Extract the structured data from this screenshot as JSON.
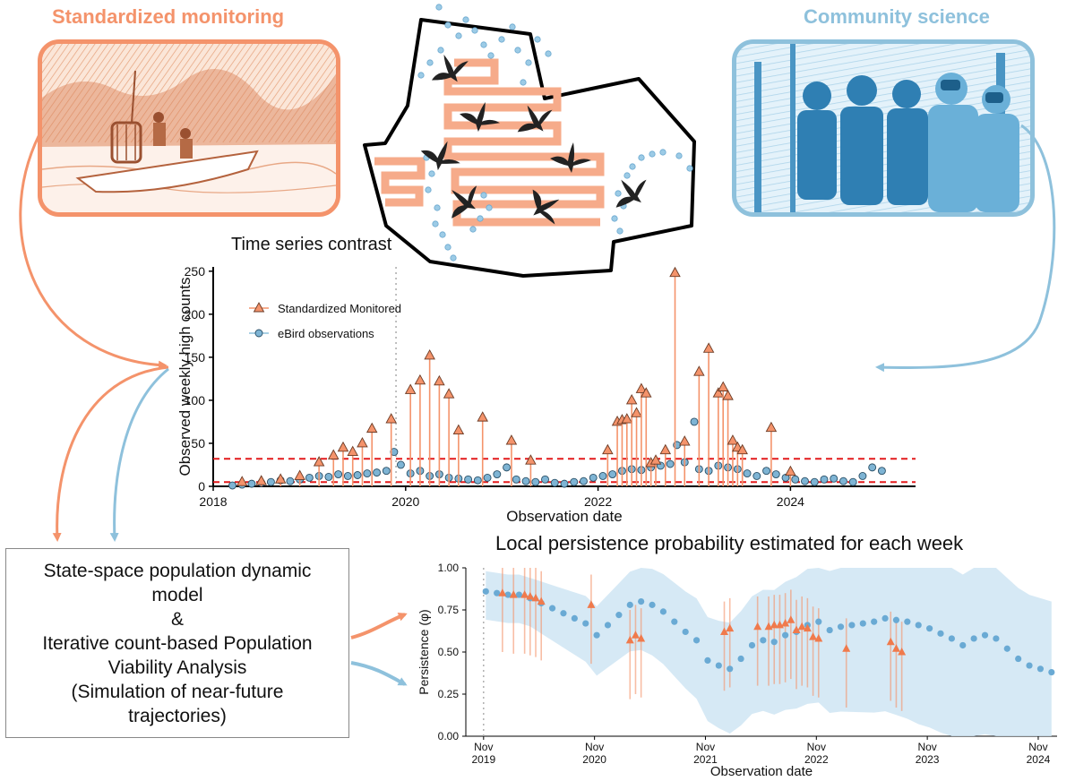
{
  "panels": {
    "left_title": "Standardized monitoring",
    "right_title": "Community science"
  },
  "colors": {
    "standardized": "#f4936b",
    "community": "#8ec1dc",
    "threshold": "#e31a1c"
  },
  "timeseries": {
    "title": "Time series contrast",
    "xlabel": "Observation date",
    "ylabel": "Observed weekly high counts",
    "legend": [
      "Standardized Monitored",
      "eBird observations"
    ],
    "x_ticks": [
      "2018",
      "2020",
      "2022",
      "2024"
    ],
    "y_ticks": [
      "0",
      "50",
      "100",
      "150",
      "200",
      "250"
    ]
  },
  "persistence": {
    "title": "Local persistence probability estimated for each week",
    "xlabel": "Observation date",
    "ylabel": "Persistence (φ)",
    "x_ticks": [
      {
        "m": "Nov",
        "y": "2019"
      },
      {
        "m": "Nov",
        "y": "2020"
      },
      {
        "m": "Nov",
        "y": "2021"
      },
      {
        "m": "Nov",
        "y": "2022"
      },
      {
        "m": "Nov",
        "y": "2023"
      },
      {
        "m": "Nov",
        "y": "2024"
      }
    ],
    "y_ticks": [
      "0.00",
      "0.25",
      "0.50",
      "0.75",
      "1.00"
    ]
  },
  "model_box": {
    "lines": [
      "State-space population dynamic",
      "model",
      "&",
      "Iterative count-based Population",
      "Viability Analysis",
      "(Simulation of near-future",
      "trajectories)"
    ]
  },
  "chart_data": [
    {
      "type": "scatter",
      "title": "Time series contrast",
      "xlabel": "Observation date",
      "ylabel": "Observed weekly high counts",
      "xlim": [
        2018.0,
        2025.3
      ],
      "ylim": [
        0,
        255
      ],
      "thresholds": [
        5,
        32
      ],
      "vline": 2019.9,
      "series": [
        {
          "name": "Standardized Monitored",
          "x": [
            2018.3,
            2018.5,
            2018.7,
            2018.9,
            2019.1,
            2019.25,
            2019.35,
            2019.45,
            2019.55,
            2019.65,
            2019.85,
            2020.05,
            2020.15,
            2020.25,
            2020.35,
            2020.45,
            2020.55,
            2020.8,
            2021.1,
            2021.3,
            2022.1,
            2022.2,
            2022.25,
            2022.3,
            2022.35,
            2022.4,
            2022.45,
            2022.5,
            2022.55,
            2022.6,
            2022.7,
            2022.8,
            2022.9,
            2023.05,
            2023.15,
            2023.25,
            2023.3,
            2023.35,
            2023.4,
            2023.45,
            2023.5,
            2023.8,
            2024.0
          ],
          "y": [
            5,
            6,
            8,
            12,
            28,
            36,
            45,
            40,
            50,
            67,
            78,
            112,
            123,
            152,
            122,
            107,
            65,
            80,
            53,
            30,
            42,
            75,
            77,
            78,
            100,
            85,
            113,
            108,
            27,
            30,
            42,
            248,
            52,
            133,
            160,
            108,
            115,
            105,
            53,
            45,
            42,
            68,
            17
          ]
        },
        {
          "name": "eBird observations",
          "x": [
            2018.2,
            2018.3,
            2018.4,
            2018.5,
            2018.6,
            2018.7,
            2018.8,
            2018.9,
            2019.0,
            2019.1,
            2019.2,
            2019.3,
            2019.4,
            2019.5,
            2019.6,
            2019.7,
            2019.8,
            2019.88,
            2019.95,
            2020.05,
            2020.15,
            2020.25,
            2020.35,
            2020.45,
            2020.55,
            2020.65,
            2020.75,
            2020.85,
            2020.95,
            2021.05,
            2021.15,
            2021.25,
            2021.35,
            2021.45,
            2021.55,
            2021.65,
            2021.75,
            2021.85,
            2021.95,
            2022.05,
            2022.15,
            2022.25,
            2022.35,
            2022.45,
            2022.55,
            2022.65,
            2022.75,
            2022.82,
            2022.9,
            2023.0,
            2023.05,
            2023.15,
            2023.25,
            2023.35,
            2023.45,
            2023.55,
            2023.65,
            2023.75,
            2023.85,
            2023.95,
            2024.05,
            2024.15,
            2024.25,
            2024.35,
            2024.45,
            2024.55,
            2024.65,
            2024.75,
            2024.85,
            2024.95
          ],
          "y": [
            1,
            2,
            3,
            4,
            5,
            7,
            6,
            8,
            10,
            12,
            11,
            14,
            12,
            13,
            15,
            16,
            18,
            40,
            25,
            15,
            18,
            12,
            14,
            10,
            9,
            8,
            7,
            10,
            14,
            22,
            8,
            6,
            5,
            8,
            4,
            3,
            5,
            6,
            10,
            12,
            14,
            18,
            20,
            19,
            22,
            24,
            26,
            48,
            28,
            75,
            20,
            18,
            24,
            22,
            20,
            15,
            12,
            18,
            14,
            10,
            8,
            6,
            5,
            8,
            9,
            6,
            5,
            12,
            22,
            18
          ]
        }
      ]
    },
    {
      "type": "scatter",
      "title": "Local persistence probability estimated for each week",
      "xlabel": "Observation date",
      "ylabel": "Persistence (φ)",
      "xlim": [
        2019.72,
        2025.05
      ],
      "ylim": [
        0,
        1
      ],
      "vline": 2019.88,
      "series": [
        {
          "name": "eBird observations",
          "x": [
            2019.9,
            2020.0,
            2020.1,
            2020.2,
            2020.3,
            2020.4,
            2020.5,
            2020.6,
            2020.7,
            2020.8,
            2020.9,
            2021.0,
            2021.1,
            2021.2,
            2021.3,
            2021.4,
            2021.5,
            2021.6,
            2021.7,
            2021.8,
            2021.9,
            2022.0,
            2022.1,
            2022.2,
            2022.3,
            2022.4,
            2022.5,
            2022.6,
            2022.7,
            2022.8,
            2022.9,
            2023.0,
            2023.1,
            2023.2,
            2023.3,
            2023.4,
            2023.5,
            2023.6,
            2023.7,
            2023.8,
            2023.9,
            2024.0,
            2024.1,
            2024.2,
            2024.3,
            2024.4,
            2024.5,
            2024.6,
            2024.7,
            2024.8,
            2024.9,
            2025.0
          ],
          "y": [
            0.86,
            0.85,
            0.84,
            0.84,
            0.82,
            0.79,
            0.76,
            0.73,
            0.7,
            0.67,
            0.6,
            0.66,
            0.72,
            0.78,
            0.8,
            0.78,
            0.74,
            0.68,
            0.62,
            0.57,
            0.45,
            0.42,
            0.4,
            0.46,
            0.54,
            0.57,
            0.56,
            0.6,
            0.62,
            0.66,
            0.68,
            0.63,
            0.65,
            0.66,
            0.67,
            0.68,
            0.7,
            0.69,
            0.68,
            0.66,
            0.64,
            0.61,
            0.58,
            0.54,
            0.58,
            0.6,
            0.58,
            0.52,
            0.46,
            0.42,
            0.4,
            0.38
          ]
        },
        {
          "name": "Standardized Monitored",
          "x": [
            2020.05,
            2020.15,
            2020.25,
            2020.3,
            2020.35,
            2020.4,
            2020.85,
            2021.2,
            2021.25,
            2021.3,
            2022.05,
            2022.1,
            2022.35,
            2022.45,
            2022.5,
            2022.55,
            2022.6,
            2022.65,
            2022.7,
            2022.75,
            2022.8,
            2022.85,
            2022.9,
            2023.15,
            2023.55,
            2023.6,
            2023.65
          ],
          "y": [
            0.85,
            0.84,
            0.84,
            0.83,
            0.82,
            0.8,
            0.78,
            0.57,
            0.6,
            0.58,
            0.62,
            0.64,
            0.65,
            0.65,
            0.66,
            0.66,
            0.67,
            0.69,
            0.63,
            0.65,
            0.64,
            0.59,
            0.58,
            0.52,
            0.56,
            0.52,
            0.5
          ]
        }
      ]
    }
  ]
}
